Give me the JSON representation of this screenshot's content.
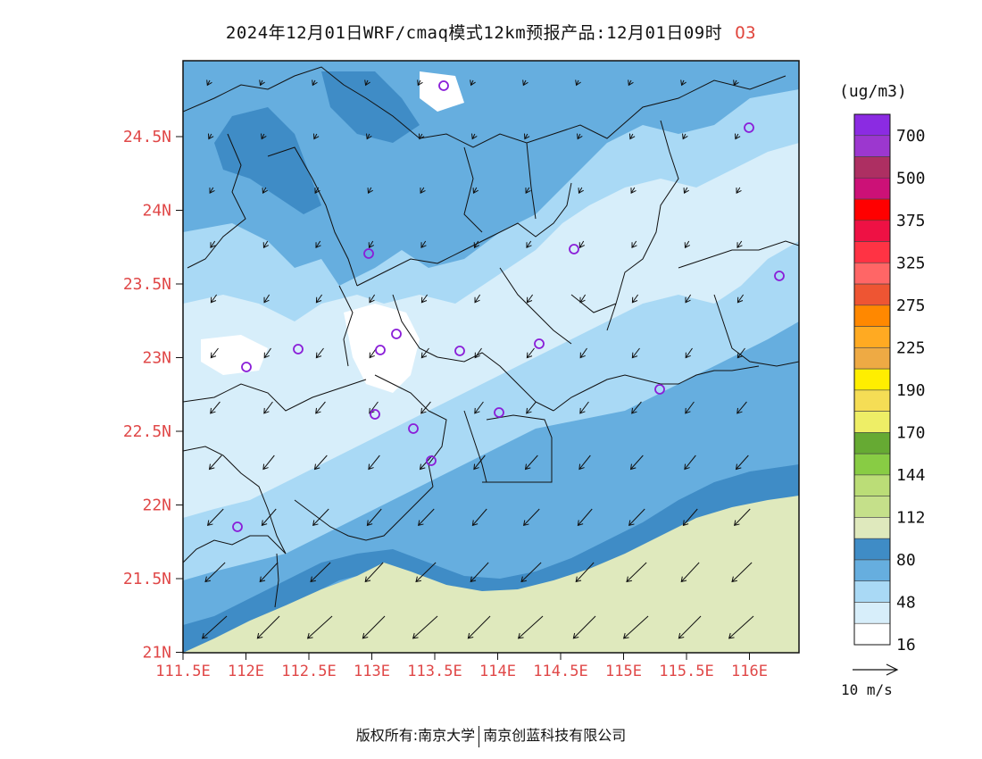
{
  "title": {
    "text": "2024年12月01日WRF/cmaq模式12km预报产品:12月01日09时",
    "species": "O3"
  },
  "map": {
    "lat_labels": [
      "24.5N",
      "24N",
      "23.5N",
      "23N",
      "22.5N",
      "22N",
      "21.5N",
      "21N"
    ],
    "lon_labels": [
      "111.5E",
      "112E",
      "112.5E",
      "113E",
      "113.5E",
      "114E",
      "114.5E",
      "115E",
      "115.5E",
      "116E"
    ],
    "colors": {
      "land_outside": "#dfe9bd",
      "ocean_dark": "#3f8cc6",
      "level_48_80": "#66aedf",
      "level_16_48": "#a9d9f5",
      "level_0_16": "#d7eefa",
      "white": "#ffffff",
      "station_marker": "#8a1ed8"
    }
  },
  "colorbar": {
    "unit": "(ug/m3)",
    "labels": [
      "700",
      "500",
      "375",
      "325",
      "275",
      "225",
      "190",
      "170",
      "144",
      "112",
      "80",
      "48",
      "16"
    ],
    "colors": [
      "#8b2be2",
      "#9c37cf",
      "#ad2f62",
      "#cc1177",
      "#ff0000",
      "#ee1144",
      "#ff3344",
      "#ff6666",
      "#ee5533",
      "#ff8800",
      "#ffaa22",
      "#eeaa44",
      "#ffee00",
      "#f5dd55",
      "#eeee66",
      "#66aa33",
      "#88cc44",
      "#bbdd77",
      "#c5e08a",
      "#dfe9bd",
      "#3f8cc6",
      "#66aedf",
      "#a9d9f5",
      "#d7eefa",
      "#ffffff"
    ]
  },
  "wind_reference": {
    "label": "10 m/s"
  },
  "footer": {
    "left": "版权所有:南京大学",
    "right": "南京创蓝科技有限公司"
  }
}
